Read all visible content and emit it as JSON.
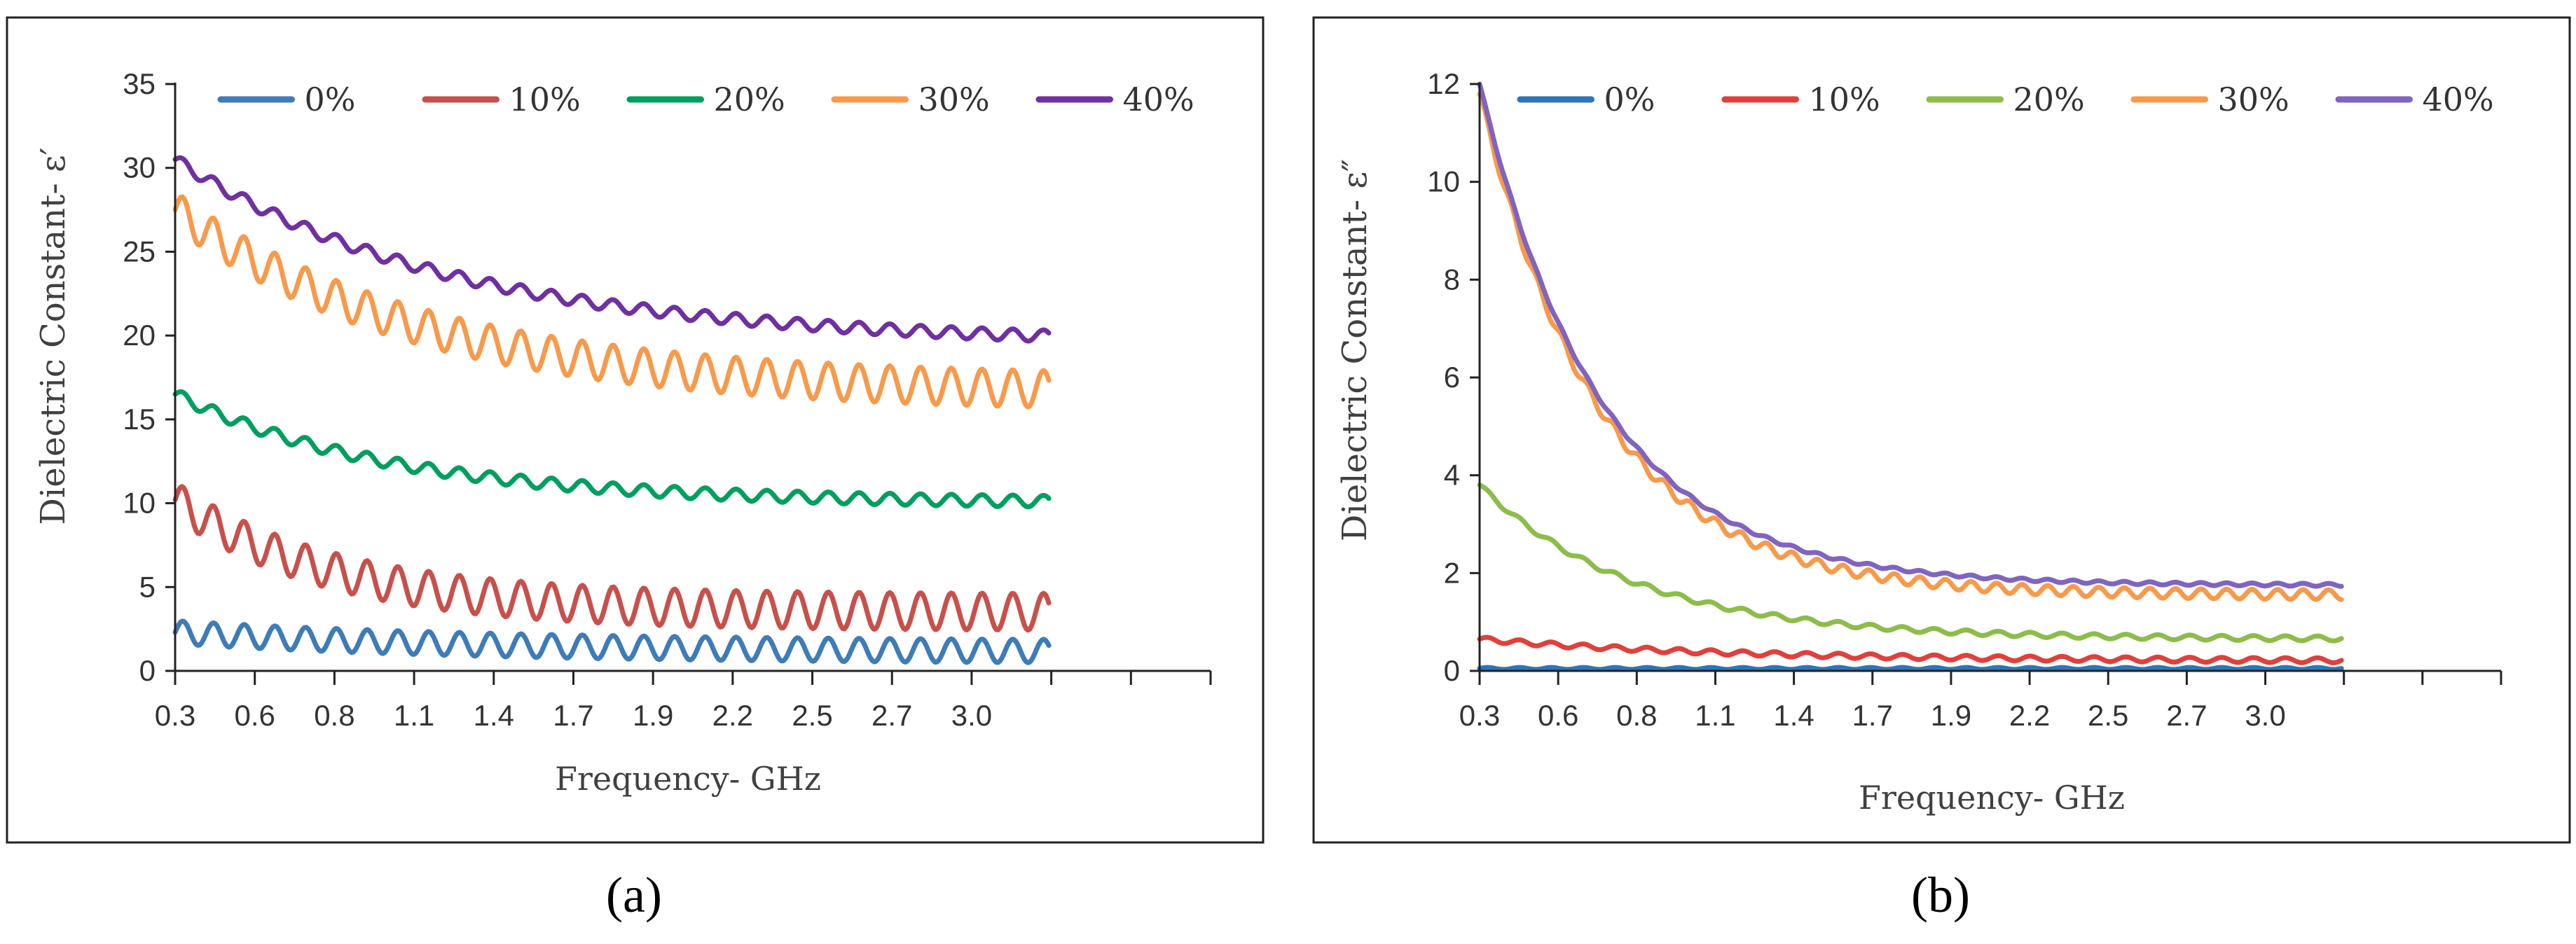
{
  "chart_data": [
    {
      "type": "line",
      "panel_label": "(a)",
      "ylabel": "Dielectric Constant- ε′",
      "xlabel": "Frequency- GHz",
      "ylim": [
        0,
        35
      ],
      "yticks": [
        "0",
        "5",
        "10",
        "15",
        "20",
        "25",
        "30",
        "35"
      ],
      "xlim": [
        0.3,
        3.5
      ],
      "xtick_labels": [
        "0.3",
        "0.6",
        "0.8",
        "1.1",
        "1.4",
        "1.7",
        "1.9",
        "2.2",
        "2.5",
        "2.7",
        "3.0"
      ],
      "series": [
        {
          "name": "0%",
          "color": "#3e7cb8",
          "start": 2.3,
          "end": 1.1,
          "k": 1.2,
          "wave": 0.7,
          "wavePeriod": 0.095
        },
        {
          "name": "10%",
          "color": "#c8504b",
          "start": 10.2,
          "end": 3.5,
          "k": 2.5,
          "wave": 1.1,
          "wavePeriod": 0.095
        },
        {
          "name": "20%",
          "color": "#009f60",
          "start": 16.5,
          "end": 10.0,
          "k": 1.8,
          "wave": 0.35,
          "wavePeriod": 0.095
        },
        {
          "name": "30%",
          "color": "#f79a4b",
          "start": 27.5,
          "end": 16.5,
          "k": 1.6,
          "wave": 1.1,
          "wavePeriod": 0.095
        },
        {
          "name": "40%",
          "color": "#7030a0",
          "start": 30.5,
          "end": 19.5,
          "k": 1.4,
          "wave": 0.35,
          "wavePeriod": 0.095
        }
      ]
    },
    {
      "type": "line",
      "panel_label": "(b)",
      "ylabel": "Dielectric Constant- ε″",
      "xlabel": "Frequency- GHz",
      "ylim": [
        0,
        12
      ],
      "yticks": [
        "0",
        "2",
        "4",
        "6",
        "8",
        "10",
        "12"
      ],
      "xlim": [
        0.3,
        3.5
      ],
      "xtick_labels": [
        "0.3",
        "0.6",
        "0.8",
        "1.1",
        "1.4",
        "1.7",
        "1.9",
        "2.2",
        "2.5",
        "2.7",
        "3.0"
      ],
      "series": [
        {
          "name": "0%",
          "color": "#2e75b6",
          "start": 0.05,
          "end": 0.05,
          "k": 1.0,
          "wave": 0.02,
          "wavePeriod": 0.1
        },
        {
          "name": "10%",
          "color": "#e0403c",
          "start": 0.65,
          "end": 0.2,
          "k": 1.5,
          "wave": 0.05,
          "wavePeriod": 0.1
        },
        {
          "name": "20%",
          "color": "#8cbd4a",
          "start": 3.8,
          "end": 0.65,
          "k": 2.5,
          "wave": 0.05,
          "wavePeriod": 0.1
        },
        {
          "name": "30%",
          "color": "#f79a4b",
          "start": 11.8,
          "end": 1.55,
          "k": 3.2,
          "wave": 0.1,
          "wavePeriod": 0.08
        },
        {
          "name": "40%",
          "color": "#8064c0",
          "start": 12.0,
          "end": 1.75,
          "k": 3.2,
          "wave": 0.03,
          "wavePeriod": 0.08
        }
      ]
    }
  ]
}
